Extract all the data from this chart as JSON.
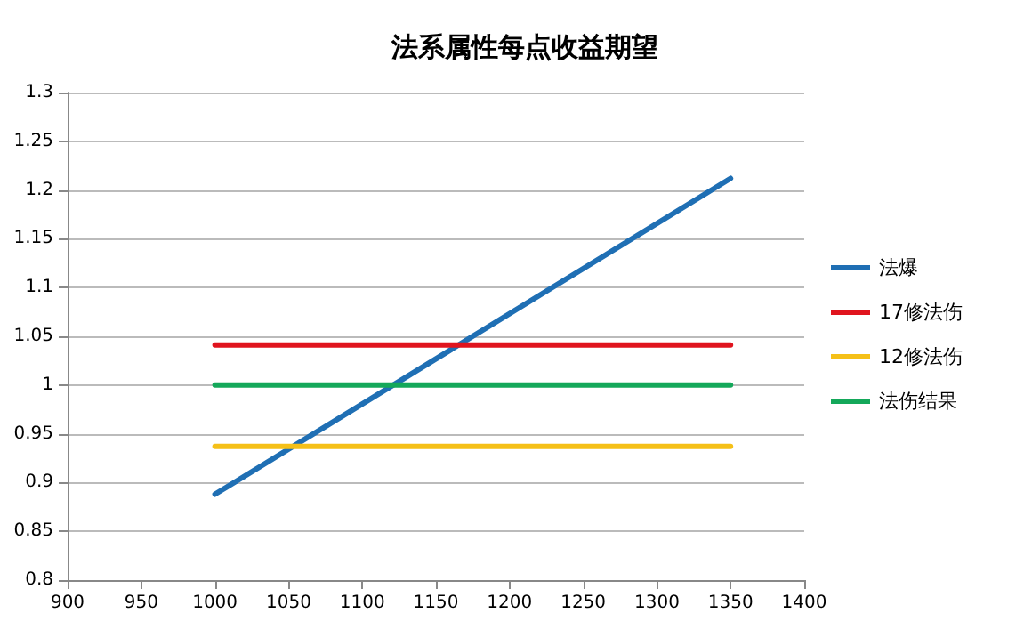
{
  "chart_data": {
    "type": "line",
    "title": "法系属性每点收益期望",
    "x": [
      1000,
      1350
    ],
    "series": [
      {
        "name": "法爆",
        "color": "#1f6fb4",
        "values": [
          0.888,
          1.212
        ]
      },
      {
        "name": "17修法伤",
        "color": "#e0141e",
        "values": [
          1.041,
          1.041
        ]
      },
      {
        "name": "12修法伤",
        "color": "#f5c018",
        "values": [
          0.937,
          0.937
        ]
      },
      {
        "name": "法伤结果",
        "color": "#14a85a",
        "values": [
          1.0,
          1.0
        ]
      }
    ],
    "xlim": [
      900,
      1400
    ],
    "xticks": [
      900,
      950,
      1000,
      1050,
      1100,
      1150,
      1200,
      1250,
      1300,
      1350,
      1400
    ],
    "ylim": [
      0.8,
      1.3
    ],
    "yticks": [
      0.8,
      0.85,
      0.9,
      0.95,
      1,
      1.05,
      1.1,
      1.15,
      1.2,
      1.25,
      1.3
    ],
    "grid": "y",
    "legend": "right",
    "marker": "none",
    "line_style": "solid"
  }
}
